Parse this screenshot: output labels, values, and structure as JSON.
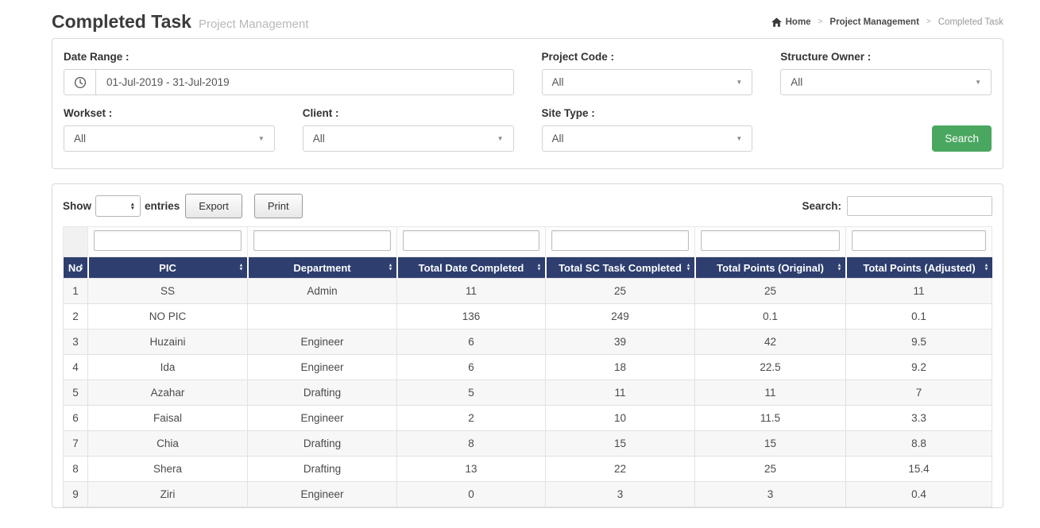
{
  "page": {
    "title": "Completed Task",
    "subtitle": "Project Management"
  },
  "breadcrumb": {
    "separator": ">",
    "items": [
      "Home",
      "Project Management",
      "Completed Task"
    ],
    "home_icon": "home-icon"
  },
  "filter_panel": {
    "date_range": {
      "label": "Date Range :",
      "value": "01-Jul-2019 - 31-Jul-2019",
      "icon": "clock-icon"
    },
    "project_code": {
      "label": "Project Code :",
      "selected": "All"
    },
    "structure_owner": {
      "label": "Structure Owner :",
      "selected": "All"
    },
    "workset": {
      "label": "Workset :",
      "selected": "All"
    },
    "client": {
      "label": "Client :",
      "selected": "All"
    },
    "site_type": {
      "label": "Site Type :",
      "selected": "All"
    },
    "search_button_label": "Search"
  },
  "table_panel": {
    "show_label": "Show",
    "show_select_value": "",
    "entries_label": "entries",
    "export_label": "Export",
    "print_label": "Print",
    "search_label": "Search:",
    "search_value": "",
    "columns": [
      "No",
      "PIC",
      "Department",
      "Total Date Completed",
      "Total SC Task Completed",
      "Total Points (Original)",
      "Total Points (Adjusted)"
    ],
    "rows": [
      [
        "1",
        "SS",
        "Admin",
        "11",
        "25",
        "25",
        "11"
      ],
      [
        "2",
        "NO PIC",
        "",
        "136",
        "249",
        "0.1",
        "0.1"
      ],
      [
        "3",
        "Huzaini",
        "Engineer",
        "6",
        "39",
        "42",
        "9.5"
      ],
      [
        "4",
        "Ida",
        "Engineer",
        "6",
        "18",
        "22.5",
        "9.2"
      ],
      [
        "5",
        "Azahar",
        "Drafting",
        "5",
        "11",
        "11",
        "7"
      ],
      [
        "6",
        "Faisal",
        "Engineer",
        "2",
        "10",
        "11.5",
        "3.3"
      ],
      [
        "7",
        "Chia",
        "Drafting",
        "8",
        "15",
        "15",
        "8.8"
      ],
      [
        "8",
        "Shera",
        "Drafting",
        "13",
        "22",
        "25",
        "15.4"
      ],
      [
        "9",
        "Ziri",
        "Engineer",
        "0",
        "3",
        "3",
        "0.4"
      ]
    ]
  },
  "colors": {
    "table_header_bg": "#2d3e6f",
    "search_button_bg": "#4aa75f",
    "row_stripe": "#f7f7f7"
  },
  "glyphs": {
    "caret_down": "▼",
    "sort_asc": "▲",
    "sort_desc": "▼"
  }
}
